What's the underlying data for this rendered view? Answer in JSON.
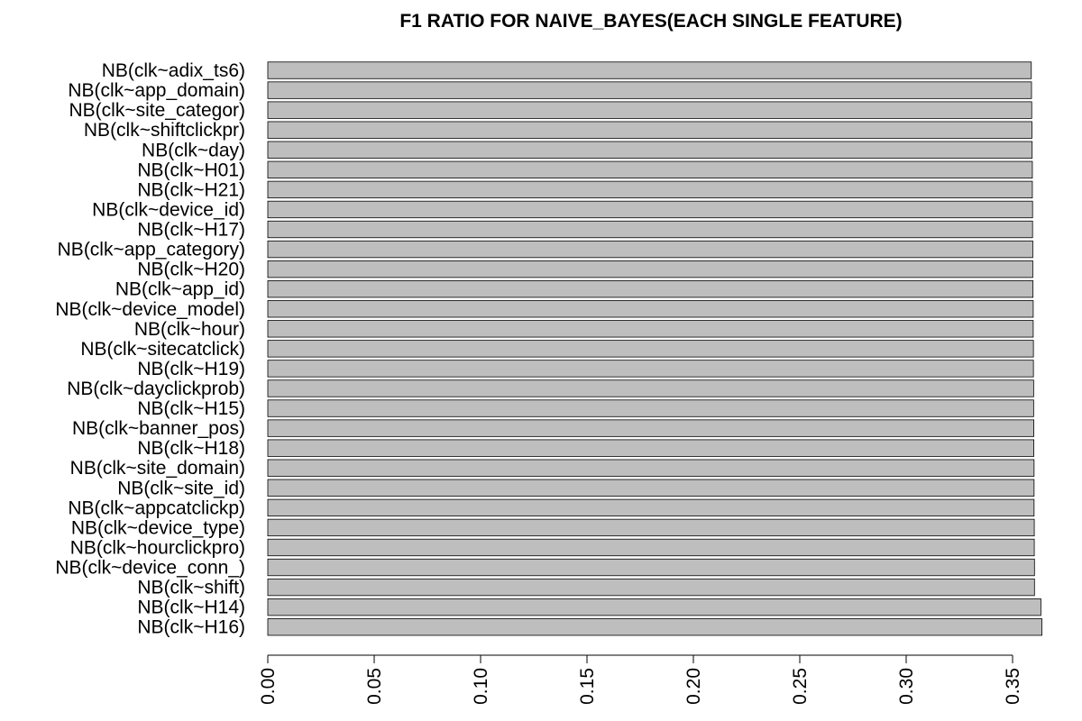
{
  "chart_data": {
    "type": "bar",
    "orientation": "horizontal",
    "title": "F1 RATIO FOR NAIVE_BAYES(EACH SINGLE FEATURE)",
    "xlabel": "",
    "ylabel": "",
    "xlim": [
      0,
      0.35
    ],
    "ticks": [
      "0.00",
      "0.05",
      "0.10",
      "0.15",
      "0.20",
      "0.25",
      "0.30",
      "0.35"
    ],
    "tick_values": [
      0.0,
      0.05,
      0.1,
      0.15,
      0.2,
      0.25,
      0.3,
      0.35
    ],
    "bar_color": "#bebebe",
    "grid": false,
    "categories": [
      "NB(clk~adix_ts6)",
      "NB(clk~app_domain)",
      "NB(clk~site_categor)",
      "NB(clk~shiftclickpr)",
      "NB(clk~day)",
      "NB(clk~H01)",
      "NB(clk~H21)",
      "NB(clk~device_id)",
      "NB(clk~H17)",
      "NB(clk~app_category)",
      "NB(clk~H20)",
      "NB(clk~app_id)",
      "NB(clk~device_model)",
      "NB(clk~hour)",
      "NB(clk~sitecatclick)",
      "NB(clk~H19)",
      "NB(clk~dayclickprob)",
      "NB(clk~H15)",
      "NB(clk~banner_pos)",
      "NB(clk~H18)",
      "NB(clk~site_domain)",
      "NB(clk~site_id)",
      "NB(clk~appcatclickp)",
      "NB(clk~device_type)",
      "NB(clk~hourclickpro)",
      "NB(clk~device_conn_)",
      "NB(clk~shift)",
      "NB(clk~H14)",
      "NB(clk~H16)"
    ],
    "values": [
      0.3588,
      0.3589,
      0.359,
      0.3591,
      0.3592,
      0.3593,
      0.3593,
      0.3594,
      0.3594,
      0.3595,
      0.3595,
      0.3596,
      0.3597,
      0.3597,
      0.3598,
      0.3598,
      0.3599,
      0.3599,
      0.36,
      0.36,
      0.3601,
      0.3601,
      0.3601,
      0.3602,
      0.3602,
      0.3603,
      0.3603,
      0.3633,
      0.3638
    ]
  }
}
